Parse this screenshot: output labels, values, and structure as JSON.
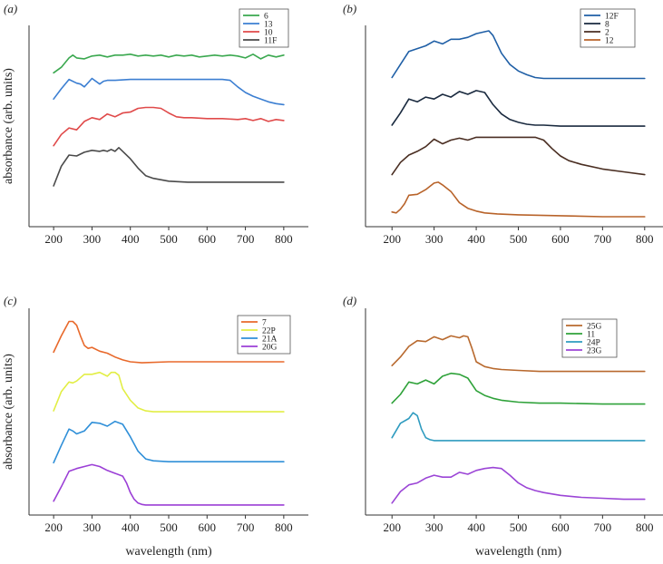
{
  "chart_data": [
    {
      "panel": "(a)",
      "type": "line",
      "xlabel": "",
      "ylabel": "absorbance (arb. units)",
      "xlim": [
        150,
        850
      ],
      "ylim": [
        0,
        10
      ],
      "xticks": [
        "200",
        "300",
        "400",
        "500",
        "600",
        "700",
        "800"
      ],
      "legend_position": "top-right",
      "series": [
        {
          "name": "6",
          "color": "#3aa84f",
          "x": [
            200,
            220,
            240,
            250,
            260,
            280,
            300,
            320,
            340,
            360,
            380,
            400,
            420,
            440,
            460,
            480,
            500,
            520,
            540,
            560,
            580,
            600,
            620,
            640,
            660,
            680,
            700,
            720,
            740,
            760,
            780,
            800
          ],
          "y": [
            7.75,
            8.05,
            8.55,
            8.7,
            8.55,
            8.5,
            8.65,
            8.7,
            8.6,
            8.7,
            8.7,
            8.75,
            8.65,
            8.7,
            8.65,
            8.7,
            8.6,
            8.7,
            8.65,
            8.7,
            8.6,
            8.65,
            8.7,
            8.65,
            8.7,
            8.65,
            8.55,
            8.75,
            8.5,
            8.7,
            8.6,
            8.7
          ]
        },
        {
          "name": "13",
          "color": "#3c7fd2",
          "x": [
            200,
            220,
            240,
            260,
            270,
            280,
            300,
            320,
            330,
            340,
            360,
            400,
            450,
            500,
            550,
            600,
            640,
            660,
            680,
            700,
            720,
            740,
            760,
            780,
            800
          ],
          "y": [
            6.35,
            6.9,
            7.4,
            7.2,
            7.15,
            7.0,
            7.45,
            7.15,
            7.3,
            7.35,
            7.35,
            7.4,
            7.4,
            7.4,
            7.4,
            7.4,
            7.4,
            7.35,
            7.0,
            6.7,
            6.5,
            6.35,
            6.2,
            6.1,
            6.05
          ]
        },
        {
          "name": "10",
          "color": "#e04a4a",
          "x": [
            200,
            220,
            240,
            260,
            280,
            300,
            320,
            340,
            360,
            380,
            400,
            420,
            440,
            460,
            480,
            500,
            520,
            540,
            560,
            600,
            640,
            680,
            700,
            720,
            740,
            760,
            780,
            800
          ],
          "y": [
            3.85,
            4.45,
            4.8,
            4.7,
            5.15,
            5.35,
            5.25,
            5.55,
            5.4,
            5.6,
            5.65,
            5.85,
            5.9,
            5.9,
            5.85,
            5.6,
            5.4,
            5.35,
            5.35,
            5.3,
            5.3,
            5.25,
            5.3,
            5.2,
            5.3,
            5.15,
            5.25,
            5.2
          ]
        },
        {
          "name": "11F",
          "color": "#4a4a4a",
          "x": [
            200,
            220,
            240,
            260,
            280,
            300,
            320,
            330,
            340,
            350,
            360,
            370,
            380,
            400,
            420,
            440,
            460,
            500,
            550,
            600,
            650,
            700,
            750,
            800
          ],
          "y": [
            1.7,
            2.75,
            3.35,
            3.3,
            3.5,
            3.6,
            3.55,
            3.6,
            3.55,
            3.65,
            3.55,
            3.75,
            3.55,
            3.15,
            2.65,
            2.25,
            2.1,
            1.95,
            1.9,
            1.9,
            1.9,
            1.9,
            1.9,
            1.9
          ]
        }
      ]
    },
    {
      "panel": "(b)",
      "type": "line",
      "xlabel": "",
      "ylabel": "",
      "xlim": [
        150,
        850
      ],
      "ylim": [
        0,
        10
      ],
      "xticks": [
        "200",
        "300",
        "400",
        "500",
        "600",
        "700",
        "800"
      ],
      "legend_position": "top-right",
      "series": [
        {
          "name": "12F",
          "color": "#1f5fa6",
          "x": [
            200,
            220,
            240,
            260,
            280,
            300,
            320,
            340,
            360,
            380,
            400,
            420,
            430,
            440,
            460,
            480,
            500,
            520,
            540,
            560,
            600,
            700,
            800
          ],
          "y": [
            7.5,
            8.2,
            8.9,
            9.05,
            9.2,
            9.45,
            9.3,
            9.55,
            9.55,
            9.65,
            9.85,
            9.95,
            10.0,
            9.75,
            8.8,
            8.2,
            7.85,
            7.65,
            7.5,
            7.45,
            7.45,
            7.45,
            7.45
          ]
        },
        {
          "name": "8",
          "color": "#1a2a3f",
          "x": [
            200,
            220,
            240,
            260,
            280,
            300,
            320,
            340,
            360,
            380,
            400,
            420,
            440,
            460,
            480,
            500,
            520,
            540,
            560,
            600,
            700,
            800
          ],
          "y": [
            4.95,
            5.6,
            6.35,
            6.2,
            6.45,
            6.35,
            6.6,
            6.45,
            6.75,
            6.6,
            6.8,
            6.7,
            6.05,
            5.55,
            5.25,
            5.1,
            5.0,
            4.95,
            4.95,
            4.9,
            4.9,
            4.9
          ]
        },
        {
          "name": "2",
          "color": "#4a2e22",
          "x": [
            200,
            220,
            240,
            260,
            280,
            300,
            320,
            340,
            360,
            380,
            400,
            450,
            500,
            520,
            540,
            560,
            580,
            600,
            620,
            650,
            700,
            750,
            800
          ],
          "y": [
            2.3,
            2.95,
            3.35,
            3.55,
            3.8,
            4.2,
            3.95,
            4.15,
            4.25,
            4.15,
            4.3,
            4.3,
            4.3,
            4.3,
            4.3,
            4.15,
            3.7,
            3.3,
            3.05,
            2.85,
            2.6,
            2.45,
            2.3
          ]
        },
        {
          "name": "12",
          "color": "#b8632a",
          "x": [
            200,
            210,
            220,
            230,
            240,
            260,
            280,
            300,
            310,
            320,
            340,
            360,
            380,
            400,
            420,
            450,
            500,
            600,
            700,
            800
          ],
          "y": [
            0.3,
            0.25,
            0.45,
            0.75,
            1.2,
            1.25,
            1.5,
            1.85,
            1.9,
            1.75,
            1.4,
            0.8,
            0.5,
            0.35,
            0.25,
            0.2,
            0.15,
            0.1,
            0.05,
            0.05
          ]
        }
      ]
    },
    {
      "panel": "(c)",
      "type": "line",
      "xlabel": "wavelength (nm)",
      "ylabel": "absorbance (arb. units)",
      "xlim": [
        150,
        850
      ],
      "ylim": [
        0,
        10
      ],
      "xticks": [
        "200",
        "300",
        "400",
        "500",
        "600",
        "700",
        "800"
      ],
      "legend_position": "top-right",
      "series": [
        {
          "name": "7",
          "color": "#e8692b",
          "x": [
            200,
            220,
            240,
            250,
            260,
            270,
            280,
            290,
            300,
            320,
            340,
            360,
            380,
            400,
            430,
            500,
            600,
            700,
            800
          ],
          "y": [
            8.0,
            8.85,
            9.6,
            9.6,
            9.4,
            8.85,
            8.35,
            8.2,
            8.25,
            8.05,
            7.95,
            7.75,
            7.6,
            7.5,
            7.45,
            7.5,
            7.5,
            7.5,
            7.5
          ]
        },
        {
          "name": "22P",
          "color": "#e2ee45",
          "x": [
            200,
            220,
            240,
            250,
            260,
            280,
            300,
            320,
            340,
            350,
            360,
            370,
            380,
            400,
            420,
            440,
            460,
            500,
            600,
            700,
            800
          ],
          "y": [
            4.95,
            5.95,
            6.45,
            6.4,
            6.5,
            6.85,
            6.85,
            6.95,
            6.75,
            6.95,
            6.95,
            6.8,
            6.1,
            5.5,
            5.1,
            4.95,
            4.9,
            4.9,
            4.9,
            4.9,
            4.9
          ]
        },
        {
          "name": "21A",
          "color": "#2f8fd8",
          "x": [
            200,
            220,
            240,
            250,
            260,
            280,
            300,
            320,
            340,
            360,
            380,
            400,
            420,
            440,
            460,
            500,
            600,
            700,
            800
          ],
          "y": [
            2.25,
            3.15,
            4.0,
            3.9,
            3.75,
            3.9,
            4.35,
            4.3,
            4.15,
            4.4,
            4.25,
            3.6,
            2.85,
            2.45,
            2.35,
            2.3,
            2.3,
            2.3,
            2.3
          ]
        },
        {
          "name": "20G",
          "color": "#9b3fd6",
          "x": [
            200,
            220,
            240,
            260,
            280,
            300,
            320,
            340,
            360,
            380,
            390,
            400,
            410,
            420,
            430,
            440,
            500,
            600,
            700,
            800
          ],
          "y": [
            0.25,
            1.0,
            1.8,
            1.95,
            2.05,
            2.15,
            2.05,
            1.85,
            1.7,
            1.55,
            1.2,
            0.7,
            0.35,
            0.15,
            0.08,
            0.05,
            0.05,
            0.05,
            0.05,
            0.05
          ]
        }
      ]
    },
    {
      "panel": "(d)",
      "type": "line",
      "xlabel": "wavelength (nm)",
      "ylabel": "",
      "xlim": [
        150,
        850
      ],
      "ylim": [
        0,
        10
      ],
      "xticks": [
        "200",
        "300",
        "400",
        "500",
        "600",
        "700",
        "800"
      ],
      "legend_position": "top-right",
      "series": [
        {
          "name": "25G",
          "color": "#b8692e",
          "x": [
            200,
            220,
            240,
            260,
            280,
            300,
            320,
            340,
            360,
            370,
            380,
            390,
            400,
            420,
            440,
            460,
            500,
            550,
            600,
            700,
            800
          ],
          "y": [
            7.3,
            7.75,
            8.3,
            8.6,
            8.55,
            8.8,
            8.65,
            8.85,
            8.75,
            8.85,
            8.8,
            8.2,
            7.5,
            7.25,
            7.15,
            7.1,
            7.05,
            7.0,
            7.0,
            7.0,
            7.0
          ]
        },
        {
          "name": "11",
          "color": "#2fa23a",
          "x": [
            200,
            220,
            240,
            260,
            280,
            300,
            320,
            340,
            360,
            380,
            400,
            420,
            440,
            460,
            500,
            550,
            600,
            700,
            800
          ],
          "y": [
            5.35,
            5.8,
            6.45,
            6.35,
            6.55,
            6.35,
            6.75,
            6.9,
            6.85,
            6.65,
            6.0,
            5.75,
            5.6,
            5.5,
            5.4,
            5.35,
            5.35,
            5.3,
            5.3
          ]
        },
        {
          "name": "24P",
          "color": "#2e9bbf",
          "x": [
            200,
            220,
            240,
            250,
            260,
            270,
            280,
            290,
            300,
            350,
            400,
            500,
            600,
            700,
            800
          ],
          "y": [
            3.55,
            4.3,
            4.55,
            4.85,
            4.7,
            4.0,
            3.55,
            3.45,
            3.4,
            3.4,
            3.4,
            3.4,
            3.4,
            3.4,
            3.4
          ]
        },
        {
          "name": "23G",
          "color": "#9b45d6",
          "x": [
            200,
            220,
            240,
            260,
            280,
            300,
            320,
            340,
            360,
            380,
            400,
            420,
            440,
            460,
            480,
            500,
            520,
            540,
            560,
            600,
            650,
            700,
            750,
            800
          ],
          "y": [
            0.15,
            0.75,
            1.1,
            1.2,
            1.45,
            1.6,
            1.5,
            1.5,
            1.75,
            1.65,
            1.85,
            1.95,
            2.0,
            1.95,
            1.6,
            1.2,
            0.95,
            0.8,
            0.7,
            0.55,
            0.45,
            0.4,
            0.35,
            0.35
          ]
        }
      ]
    }
  ]
}
